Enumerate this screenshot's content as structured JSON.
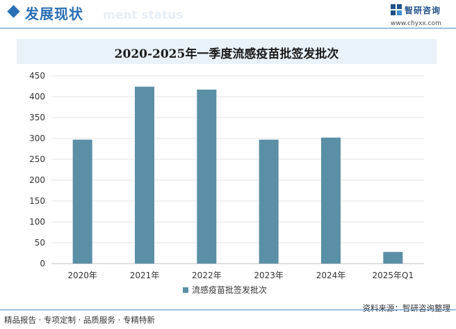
{
  "header": {
    "title": "发展现状",
    "ghost_text": "ment status"
  },
  "logo": {
    "name": "智研咨询",
    "url": "www.chyxx.com"
  },
  "footer": {
    "left": "精品报告 · 专项定制 · 品质服务 · 专精特新",
    "source": "资料来源：智研咨询整理"
  },
  "colors": {
    "bar": "#5b8fa6",
    "accent": "#2a6fb3"
  },
  "chart_data": {
    "type": "bar",
    "title": "2020-2025年一季度流感疫苗批签发批次",
    "categories": [
      "2020年",
      "2021年",
      "2022年",
      "2023年",
      "2024年",
      "2025年Q1"
    ],
    "series": [
      {
        "name": "流感疫苗批签发批次",
        "values": [
          297,
          424,
          417,
          297,
          302,
          28
        ]
      }
    ],
    "ylim": [
      0,
      450
    ],
    "yticks": [
      0,
      50,
      100,
      150,
      200,
      250,
      300,
      350,
      400,
      450
    ],
    "grid": true,
    "legend": "bottom"
  }
}
